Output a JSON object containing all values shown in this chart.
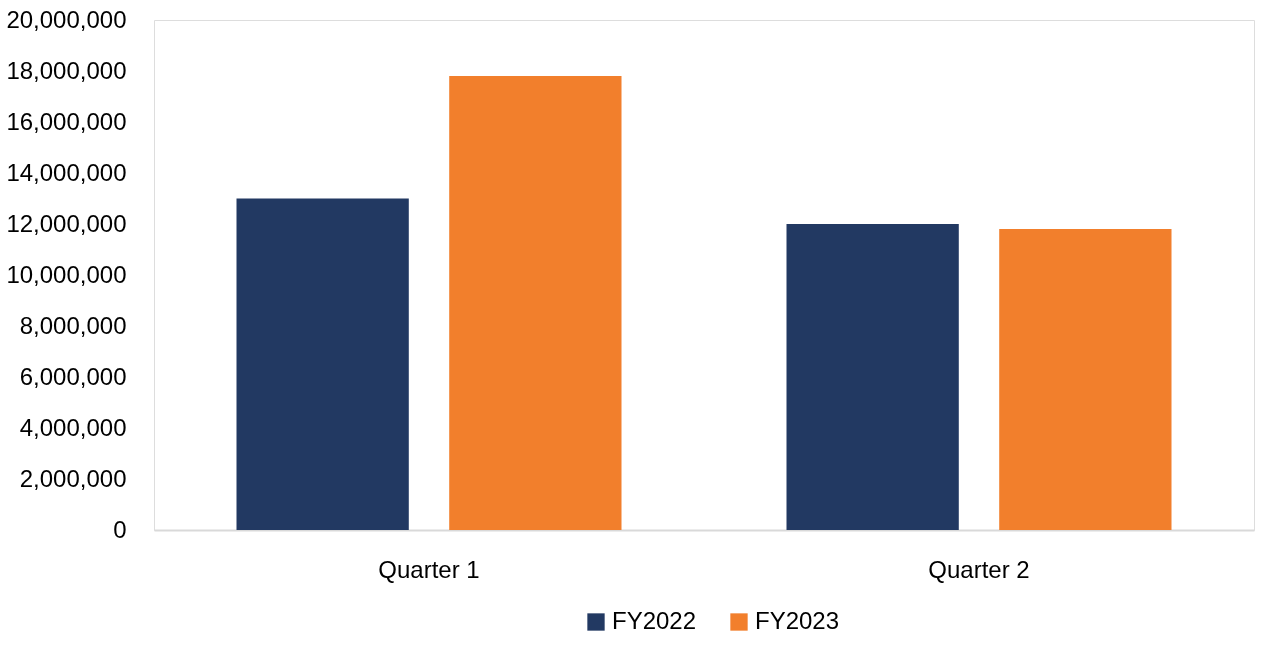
{
  "chart_data": {
    "type": "bar",
    "categories": [
      "Quarter 1",
      "Quarter 2"
    ],
    "series": [
      {
        "name": "FY2022",
        "color": "#223962",
        "values": [
          13000000,
          12000000
        ]
      },
      {
        "name": "FY2023",
        "color": "#f27f2c",
        "values": [
          17800000,
          11800000
        ]
      }
    ],
    "ylim": [
      0,
      20000000
    ],
    "yticks": [
      0,
      {
        "value": 2000000,
        "label": "2,000,000"
      },
      {
        "value": 4000000,
        "label": "4,000,000"
      },
      {
        "value": 6000000,
        "label": "6,000,000"
      },
      {
        "value": 8000000,
        "label": "8,000,000"
      },
      {
        "value": 10000000,
        "label": "10,000,000"
      },
      {
        "value": 12000000,
        "label": "12,000,000"
      },
      {
        "value": 14000000,
        "label": "14,000,000"
      },
      {
        "value": 16000000,
        "label": "16,000,000"
      },
      {
        "value": 18000000,
        "label": "18,000,000"
      },
      {
        "value": 20000000,
        "label": "20,000,000"
      }
    ],
    "grid": false,
    "legend": "bottom"
  }
}
